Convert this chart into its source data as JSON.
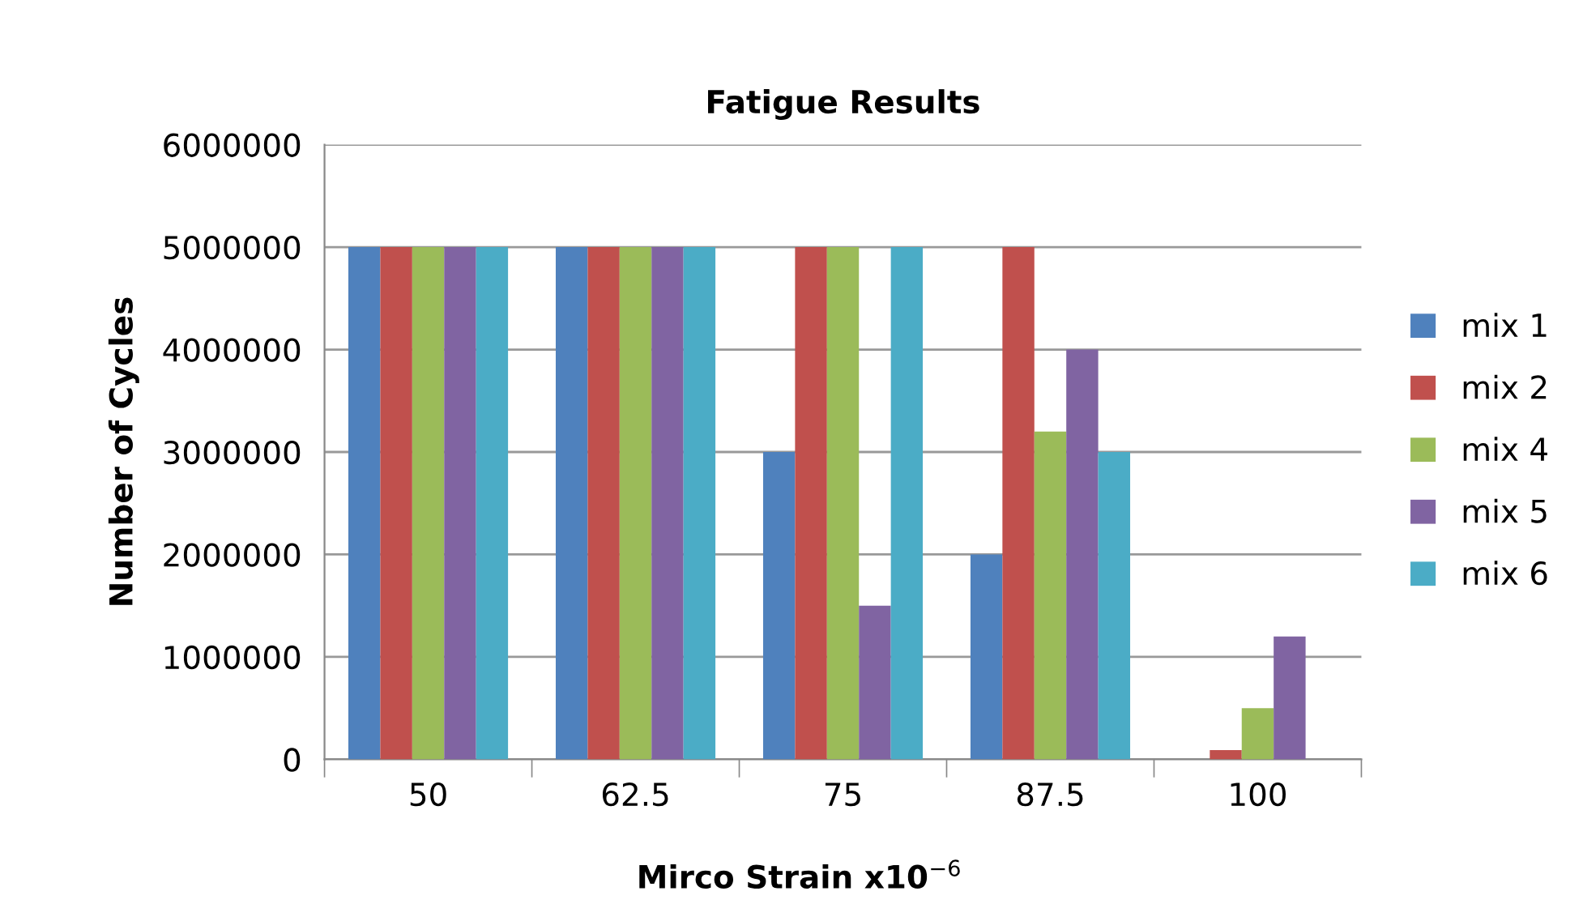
{
  "chart_data": {
    "type": "bar",
    "title": "Fatigue Results",
    "xlabel": "Mirco Strain x10$^{−6}$",
    "ylabel": "Number of Cycles",
    "categories": [
      "50",
      "62.5",
      "75",
      "87.5",
      "100"
    ],
    "series": [
      {
        "name": "mix 1",
        "color": "#4f81bd",
        "values": [
          5000000,
          5000000,
          3000000,
          2000000,
          0
        ]
      },
      {
        "name": "mix 2",
        "color": "#c0504d",
        "values": [
          5000000,
          5000000,
          5000000,
          5000000,
          90000
        ]
      },
      {
        "name": "mix 4",
        "color": "#9bbb59",
        "values": [
          5000000,
          5000000,
          5000000,
          3200000,
          500000
        ]
      },
      {
        "name": "mix 5",
        "color": "#8064a2",
        "values": [
          5000000,
          5000000,
          1500000,
          4000000,
          1200000
        ]
      },
      {
        "name": "mix 6",
        "color": "#4bacc6",
        "values": [
          5000000,
          5000000,
          5000000,
          3000000,
          0
        ]
      }
    ],
    "ylim": [
      0,
      6000000
    ],
    "yticks": [
      0,
      1000000,
      2000000,
      3000000,
      4000000,
      5000000,
      6000000
    ],
    "grid": "y",
    "legend": "right"
  }
}
